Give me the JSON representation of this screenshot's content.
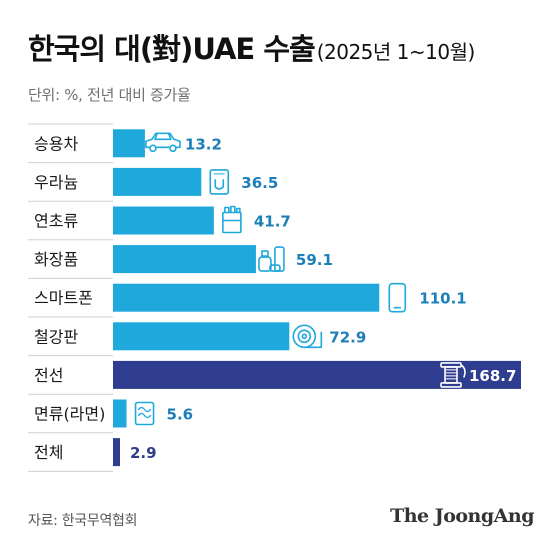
{
  "title": "한국의 대(對)UAE 수출",
  "subtitle": "(2025년 1~10월)",
  "unit_note": "단위: %, 전년 대비 증가율",
  "source": "자료: 한국무역협회",
  "brand": "The JoongAng",
  "colors": {
    "bar": "#1fa8dc",
    "highlight": "#2e3d8f",
    "value_text": "#1d7fb8",
    "icon": "#1fa8dc"
  },
  "chart_data": {
    "type": "bar",
    "orientation": "horizontal",
    "categories": [
      "승용차",
      "우라늄",
      "연초류",
      "화장품",
      "스마트폰",
      "철강판",
      "전선",
      "면류(라면)",
      "전체"
    ],
    "values": [
      13.2,
      36.5,
      41.7,
      59.1,
      110.1,
      72.9,
      168.7,
      5.6,
      2.9
    ],
    "value_labels": [
      "13.2",
      "36.5",
      "41.7",
      "59.1",
      "110.1",
      "72.9",
      "168.7",
      "5.6",
      "2.9"
    ],
    "icons": [
      "car-icon",
      "uranium-icon",
      "cigarette-icon",
      "cosmetics-icon",
      "smartphone-icon",
      "steel-coil-icon",
      "cable-spool-icon",
      "noodle-icon",
      ""
    ],
    "highlight": [
      "전선",
      "전체"
    ],
    "xlim": [
      0,
      170
    ],
    "grid": false,
    "legend": "none"
  }
}
